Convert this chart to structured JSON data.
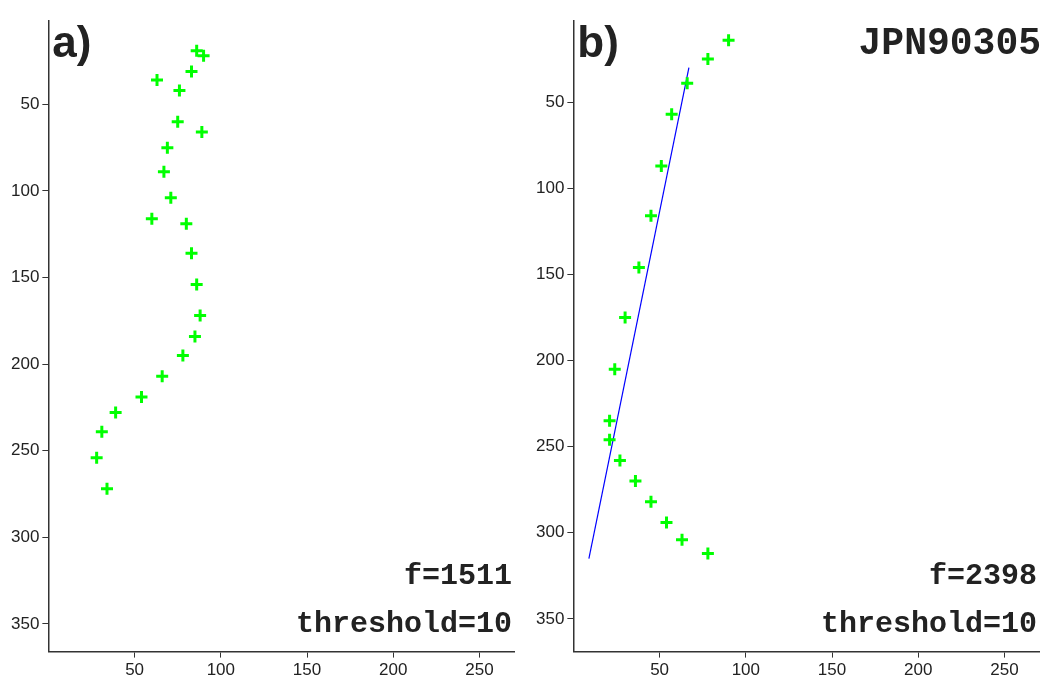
{
  "chart_data": [
    {
      "type": "scatter",
      "marker": "cross",
      "xlim": [
        0,
        270
      ],
      "ylim": [
        366,
        2
      ],
      "xticks": [
        50,
        100,
        150,
        200,
        250
      ],
      "yticks": [
        50,
        100,
        150,
        200,
        250,
        300,
        350
      ],
      "grid": false,
      "legend": false,
      "annotations": [
        "a)",
        "f=1511",
        "threshold=10"
      ],
      "series": [
        {
          "color": "#00ff00",
          "x": [
            86,
            90,
            83,
            76,
            63,
            75,
            89,
            69,
            67,
            60,
            71,
            80,
            83,
            86,
            88,
            85,
            78,
            66,
            54,
            39,
            31,
            28,
            34
          ],
          "values": [
            19,
            22,
            31,
            42,
            36,
            60,
            66,
            75,
            89,
            116,
            104,
            119,
            136,
            154,
            172,
            184,
            195,
            207,
            219,
            228,
            239,
            254,
            272
          ]
        }
      ]
    },
    {
      "type": "scatter",
      "marker": "cross",
      "xlim": [
        0,
        270
      ],
      "ylim": [
        369,
        3
      ],
      "xticks": [
        50,
        100,
        150,
        200,
        250
      ],
      "yticks": [
        50,
        100,
        150,
        200,
        250,
        300,
        350
      ],
      "grid": false,
      "legend": false,
      "annotations": [
        "b)",
        "JPN90305",
        "f=2398",
        "threshold=10"
      ],
      "series": [
        {
          "color": "#00ff00",
          "x": [
            90,
            78,
            66,
            57,
            51,
            45,
            38,
            30,
            24,
            21,
            21,
            27,
            36,
            45,
            54,
            63,
            78
          ],
          "values": [
            14,
            25,
            39,
            57,
            87,
            116,
            146,
            175,
            205,
            235,
            246,
            258,
            270,
            282,
            294,
            304,
            312
          ]
        },
        {
          "type": "line",
          "color": "#0000ff",
          "marker": "none",
          "x": [
            67,
            9
          ],
          "values": [
            30,
            315
          ]
        }
      ]
    }
  ]
}
